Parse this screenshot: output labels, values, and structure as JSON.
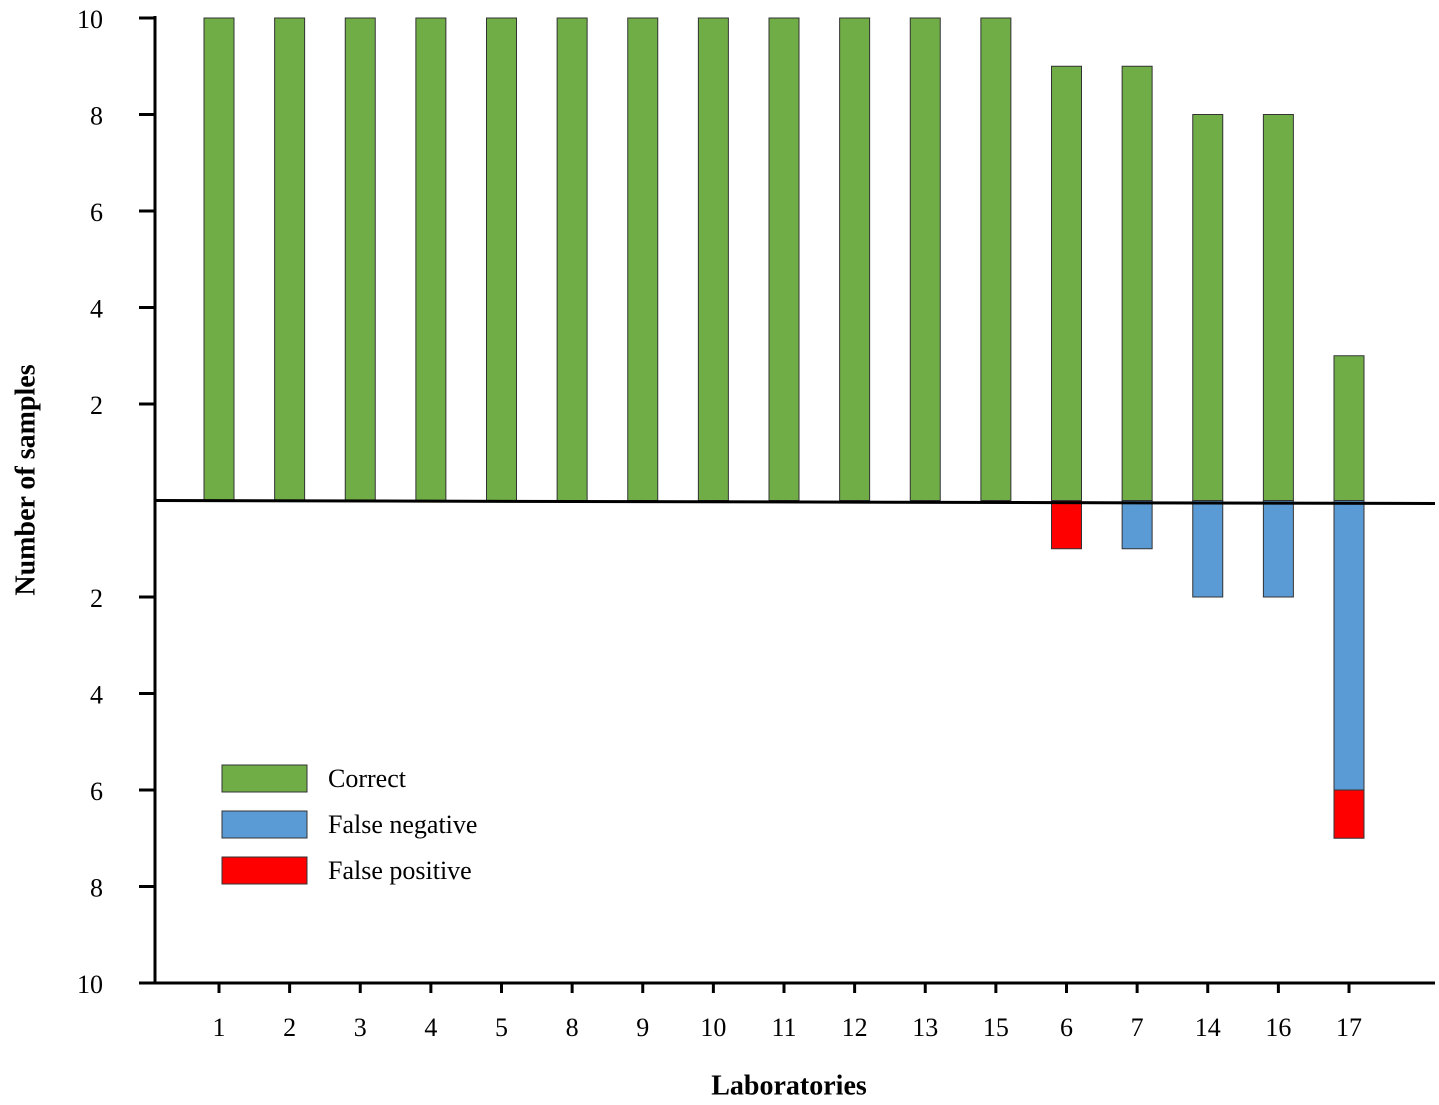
{
  "chart_data": {
    "type": "bar",
    "x_label": "Laboratories",
    "y_label": "Number of samples",
    "categories": [
      "1",
      "2",
      "3",
      "4",
      "5",
      "8",
      "9",
      "10",
      "11",
      "12",
      "13",
      "15",
      "6",
      "7",
      "14",
      "16",
      "17"
    ],
    "series": [
      {
        "name": "Correct",
        "color": "#70ad47",
        "values": [
          10,
          10,
          10,
          10,
          10,
          10,
          10,
          10,
          10,
          10,
          10,
          10,
          9,
          9,
          8,
          8,
          3
        ]
      },
      {
        "name": "False negative",
        "color": "#5b9bd5",
        "values": [
          0,
          0,
          0,
          0,
          0,
          0,
          0,
          0,
          0,
          0,
          0,
          0,
          0,
          -1,
          -2,
          -2,
          -6
        ]
      },
      {
        "name": "False positive",
        "color": "#ff0000",
        "values": [
          0,
          0,
          0,
          0,
          0,
          0,
          0,
          0,
          0,
          0,
          0,
          0,
          -1,
          0,
          0,
          0,
          -1
        ]
      }
    ],
    "stacked": true,
    "ylim": [
      -10,
      10
    ],
    "yticks": [
      {
        "value": -10,
        "label": "10"
      },
      {
        "value": -8,
        "label": "8"
      },
      {
        "value": -6,
        "label": "6"
      },
      {
        "value": -4,
        "label": "4"
      },
      {
        "value": -2,
        "label": "2"
      },
      2,
      4,
      6,
      8,
      10
    ],
    "legend": "lower left"
  }
}
